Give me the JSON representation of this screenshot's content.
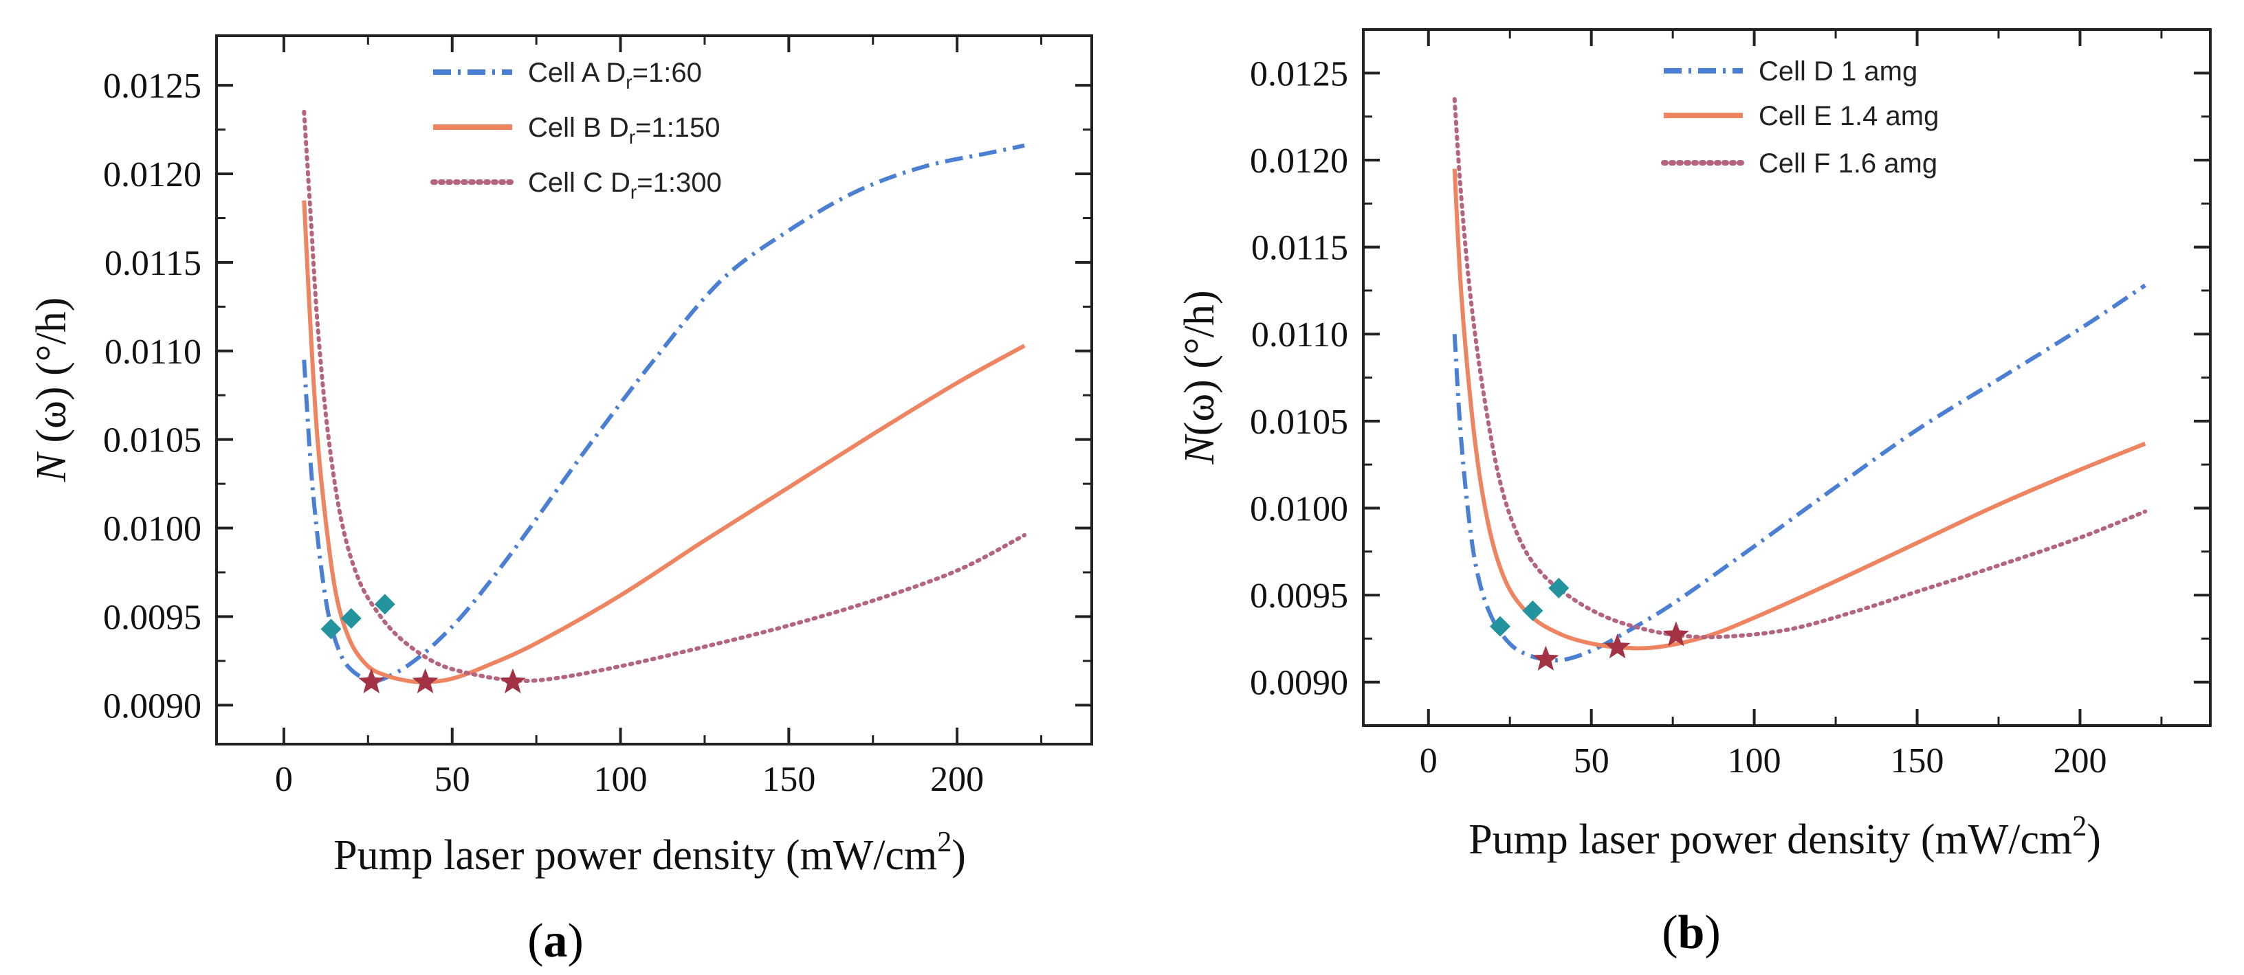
{
  "colors": {
    "series_1": "#4a7fd4",
    "series_2": "#ef8461",
    "series_3": "#b5647e",
    "diamond_marker": "#23939e",
    "star_marker": "#a33244"
  },
  "panels": [
    {
      "caption_open": "(",
      "caption_letter": "a",
      "caption_close": ")",
      "ylabel_italic": "N",
      "ylabel_rest": " (ω) (°/h)",
      "xlabel_main": "Pump laser power density (mW/cm",
      "xlabel_sup": "2",
      "xlabel_end": ")",
      "xtick_labels": [
        "0",
        "50",
        "100",
        "150",
        "200"
      ],
      "ytick_labels": [
        "0.0090",
        "0.0095",
        "0.0100",
        "0.0105",
        "0.0110",
        "0.0115",
        "0.0120",
        "0.0125"
      ],
      "legend": [
        {
          "pre": "Cell A D",
          "sub": "r",
          "post": "=1:60"
        },
        {
          "pre": "Cell B D",
          "sub": "r",
          "post": "=1:150"
        },
        {
          "pre": "Cell C D",
          "sub": "r",
          "post": "=1:300"
        }
      ]
    },
    {
      "caption_open": "(",
      "caption_letter": "b",
      "caption_close": ")",
      "ylabel_italic": "N",
      "ylabel_rest": "(ω) (°/h)",
      "xlabel_main": "Pump laser power density (mW/cm",
      "xlabel_sup": "2",
      "xlabel_end": ")",
      "xtick_labels": [
        "0",
        "50",
        "100",
        "150",
        "200"
      ],
      "ytick_labels": [
        "0.0090",
        "0.0095",
        "0.0100",
        "0.0105",
        "0.0110",
        "0.0115",
        "0.0120",
        "0.0125"
      ],
      "legend": [
        {
          "pre": "Cell D 1 amg",
          "sub": "",
          "post": ""
        },
        {
          "pre": "Cell E 1.4 amg",
          "sub": "",
          "post": ""
        },
        {
          "pre": "Cell F 1.6 amg",
          "sub": "",
          "post": ""
        }
      ]
    }
  ],
  "chart_data": [
    {
      "type": "line",
      "xlim": [
        -20,
        240
      ],
      "ylim": [
        0.00878,
        0.01278
      ],
      "x_ticks": [
        0,
        50,
        100,
        150,
        200
      ],
      "y_ticks": [
        0.009,
        0.0095,
        0.01,
        0.0105,
        0.011,
        0.0115,
        0.012,
        0.0125
      ],
      "legend_position": "top-center",
      "grid": false,
      "series": [
        {
          "name": "Cell A Dr=1:60",
          "style": "dashdot",
          "x": [
            6,
            8,
            10,
            12,
            14,
            17,
            20,
            24,
            28,
            33,
            38,
            45,
            55,
            70,
            90,
            110,
            130,
            150,
            170,
            190,
            210,
            220
          ],
          "y": [
            0.01095,
            0.01035,
            0.00995,
            0.00965,
            0.00945,
            0.00928,
            0.0092,
            0.00915,
            0.00914,
            0.00918,
            0.00924,
            0.00935,
            0.00955,
            0.00992,
            0.01045,
            0.01095,
            0.0114,
            0.01168,
            0.0119,
            0.01204,
            0.01212,
            0.01216
          ]
        },
        {
          "name": "Cell B Dr=1:150",
          "style": "solid",
          "x": [
            6,
            8,
            10,
            13,
            16,
            20,
            25,
            30,
            36,
            42,
            50,
            60,
            75,
            100,
            125,
            150,
            175,
            200,
            220
          ],
          "y": [
            0.01185,
            0.0111,
            0.0105,
            0.00995,
            0.00958,
            0.00935,
            0.00922,
            0.00917,
            0.00914,
            0.00913,
            0.00915,
            0.00922,
            0.00935,
            0.00962,
            0.00993,
            0.01023,
            0.01053,
            0.01082,
            0.01103
          ]
        },
        {
          "name": "Cell C Dr=1:300",
          "style": "dotted",
          "x": [
            6,
            8,
            10,
            13,
            17,
            22,
            28,
            35,
            45,
            55,
            68,
            80,
            100,
            125,
            150,
            175,
            200,
            220
          ],
          "y": [
            0.01235,
            0.01175,
            0.01115,
            0.01055,
            0.01005,
            0.00972,
            0.00952,
            0.00937,
            0.00924,
            0.00918,
            0.00914,
            0.00915,
            0.00922,
            0.00933,
            0.00945,
            0.00959,
            0.00976,
            0.00996
          ]
        }
      ],
      "markers": {
        "diamonds": [
          [
            14,
            0.00943
          ],
          [
            20,
            0.00949
          ],
          [
            30,
            0.00957
          ]
        ],
        "stars": [
          [
            26,
            0.00913
          ],
          [
            42,
            0.00913
          ],
          [
            68,
            0.00913
          ]
        ]
      }
    },
    {
      "type": "line",
      "xlim": [
        -20,
        240
      ],
      "ylim": [
        0.00875,
        0.01275
      ],
      "x_ticks": [
        0,
        50,
        100,
        150,
        200
      ],
      "y_ticks": [
        0.009,
        0.0095,
        0.01,
        0.0105,
        0.011,
        0.0115,
        0.012,
        0.0125
      ],
      "legend_position": "top-center",
      "grid": false,
      "series": [
        {
          "name": "Cell D 1 amg",
          "style": "dashdot",
          "x": [
            8,
            10,
            13,
            16,
            20,
            25,
            30,
            36,
            42,
            50,
            60,
            75,
            100,
            125,
            150,
            175,
            200,
            220
          ],
          "y": [
            0.011,
            0.0104,
            0.00985,
            0.00955,
            0.00935,
            0.00922,
            0.00916,
            0.00913,
            0.00913,
            0.00918,
            0.00928,
            0.00945,
            0.00978,
            0.01012,
            0.01045,
            0.01074,
            0.01103,
            0.01128
          ]
        },
        {
          "name": "Cell E 1.4 amg",
          "style": "solid",
          "x": [
            8,
            10,
            13,
            16,
            20,
            25,
            32,
            40,
            48,
            58,
            70,
            85,
            100,
            125,
            150,
            175,
            200,
            220
          ],
          "y": [
            0.01195,
            0.01125,
            0.0106,
            0.01015,
            0.00978,
            0.00953,
            0.00937,
            0.00928,
            0.00923,
            0.0092,
            0.0092,
            0.00926,
            0.00937,
            0.00958,
            0.0098,
            0.01002,
            0.01022,
            0.01037
          ]
        },
        {
          "name": "Cell F 1.6 amg",
          "style": "dotted",
          "x": [
            8,
            10,
            13,
            17,
            22,
            28,
            35,
            45,
            55,
            65,
            76,
            90,
            110,
            130,
            150,
            175,
            200,
            220
          ],
          "y": [
            0.01235,
            0.0118,
            0.0112,
            0.01065,
            0.01015,
            0.00982,
            0.00962,
            0.00947,
            0.00937,
            0.00931,
            0.00927,
            0.00926,
            0.0093,
            0.0094,
            0.00952,
            0.00967,
            0.00983,
            0.00998
          ]
        }
      ],
      "markers": {
        "diamonds": [
          [
            22,
            0.00932
          ],
          [
            32,
            0.00941
          ],
          [
            40,
            0.00954
          ]
        ],
        "stars": [
          [
            36,
            0.00913
          ],
          [
            58,
            0.0092
          ],
          [
            76,
            0.00927
          ]
        ]
      }
    }
  ]
}
